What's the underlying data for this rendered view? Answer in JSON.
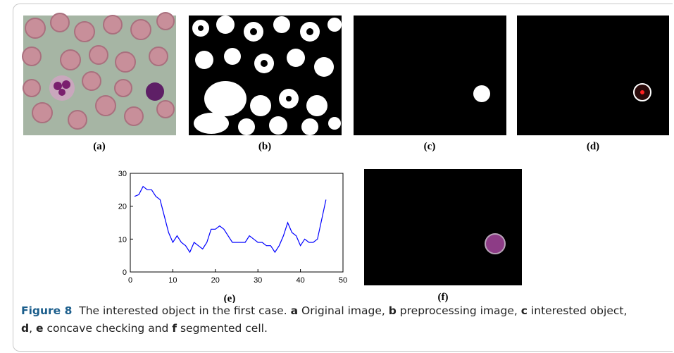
{
  "panels": [
    "(a)",
    "(b)",
    "(c)",
    "(d)",
    "(e)",
    "(f)"
  ],
  "caption": {
    "label": "Figure 8",
    "text": "The interested object in the first case.",
    "parts": [
      {
        "key": "a",
        "text": "Original image,"
      },
      {
        "key": "b",
        "text": "preprocessing image,"
      },
      {
        "key": "c",
        "text": "interested object,"
      },
      {
        "key": "d",
        "text": ","
      },
      {
        "key": "e",
        "text": "concave checking and"
      },
      {
        "key": "f",
        "text": "segmented cell."
      }
    ]
  },
  "chart_data": {
    "type": "line",
    "color": "#0000ff",
    "x": [
      1,
      2,
      3,
      4,
      5,
      6,
      7,
      8,
      9,
      10,
      11,
      12,
      13,
      14,
      15,
      16,
      17,
      18,
      19,
      20,
      21,
      22,
      23,
      24,
      25,
      26,
      27,
      28,
      29,
      30,
      31,
      32,
      33,
      34,
      35,
      36,
      37,
      38,
      39,
      40,
      41,
      42,
      43,
      44,
      45,
      46
    ],
    "values": [
      23,
      23.5,
      26,
      25,
      25,
      23,
      22,
      17,
      12,
      9,
      11,
      9,
      8,
      6,
      9,
      8,
      7,
      9,
      13,
      13,
      14,
      13,
      11,
      9,
      9,
      9,
      9,
      11,
      10,
      9,
      9,
      8,
      8,
      6,
      8,
      11,
      15,
      12,
      11,
      8,
      10,
      9,
      9,
      10,
      16,
      22
    ],
    "xlim": [
      0,
      50
    ],
    "ylim": [
      0,
      30
    ],
    "xticks": [
      0,
      10,
      20,
      30,
      40,
      50
    ],
    "yticks": [
      0,
      10,
      20,
      30
    ]
  }
}
